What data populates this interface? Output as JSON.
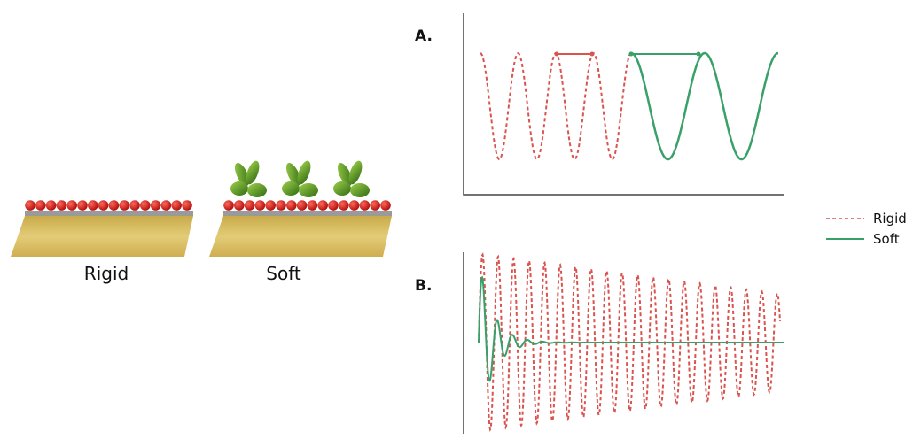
{
  "illustration": {
    "surfaces": [
      {
        "label": "Rigid"
      },
      {
        "label": "Soft"
      }
    ]
  },
  "panels": [
    {
      "label": "A."
    },
    {
      "label": "B."
    }
  ],
  "legend": [
    {
      "name": "Rigid",
      "color": "#d9534f",
      "dashed": true
    },
    {
      "name": "Soft",
      "color": "#3aa06a",
      "dashed": false
    }
  ]
}
